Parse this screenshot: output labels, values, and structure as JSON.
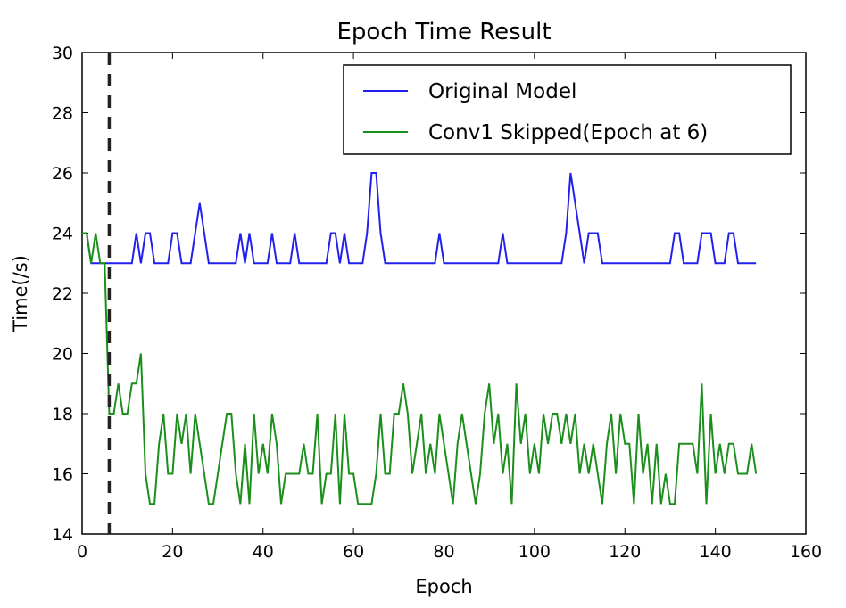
{
  "chart_data": {
    "type": "line",
    "title": "Epoch Time Result",
    "xlabel": "Epoch",
    "ylabel": "Time(/s)",
    "xlim": [
      0,
      160
    ],
    "ylim": [
      14,
      30
    ],
    "xticks": [
      0,
      20,
      40,
      60,
      80,
      100,
      120,
      140,
      160
    ],
    "yticks": [
      14,
      16,
      18,
      20,
      22,
      24,
      26,
      28,
      30
    ],
    "grid": false,
    "legend_position": "top-right",
    "vline": {
      "x": 6,
      "style": "dashed",
      "color": "#222222"
    },
    "series": [
      {
        "name": "Original Model",
        "color": "#2020ee",
        "x": [
          0,
          1,
          2,
          3,
          4,
          5,
          6,
          7,
          8,
          9,
          10,
          11,
          12,
          13,
          14,
          15,
          16,
          17,
          18,
          19,
          20,
          21,
          22,
          23,
          24,
          25,
          26,
          27,
          28,
          29,
          30,
          31,
          32,
          33,
          34,
          35,
          36,
          37,
          38,
          39,
          40,
          41,
          42,
          43,
          44,
          45,
          46,
          47,
          48,
          49,
          50,
          51,
          52,
          53,
          54,
          55,
          56,
          57,
          58,
          59,
          60,
          61,
          62,
          63,
          64,
          65,
          66,
          67,
          68,
          69,
          70,
          71,
          72,
          73,
          74,
          75,
          76,
          77,
          78,
          79,
          80,
          81,
          82,
          83,
          84,
          85,
          86,
          87,
          88,
          89,
          90,
          91,
          92,
          93,
          94,
          95,
          96,
          97,
          98,
          99,
          100,
          101,
          102,
          103,
          104,
          105,
          106,
          107,
          108,
          109,
          110,
          111,
          112,
          113,
          114,
          115,
          116,
          117,
          118,
          119,
          120,
          121,
          122,
          123,
          124,
          125,
          126,
          127,
          128,
          129,
          130,
          131,
          132,
          133,
          134,
          135,
          136,
          137,
          138,
          139,
          140,
          141,
          142,
          143,
          144,
          145,
          146,
          147,
          148,
          149
        ],
        "y": [
          24,
          24,
          23,
          23,
          23,
          23,
          23,
          23,
          23,
          23,
          23,
          23,
          24,
          23,
          24,
          24,
          23,
          23,
          23,
          23,
          24,
          24,
          23,
          23,
          23,
          24,
          25,
          24,
          23,
          23,
          23,
          23,
          23,
          23,
          23,
          24,
          23,
          24,
          23,
          23,
          23,
          23,
          24,
          23,
          23,
          23,
          23,
          24,
          23,
          23,
          23,
          23,
          23,
          23,
          23,
          24,
          24,
          23,
          24,
          23,
          23,
          23,
          23,
          24,
          26,
          26,
          24,
          23,
          23,
          23,
          23,
          23,
          23,
          23,
          23,
          23,
          23,
          23,
          23,
          24,
          23,
          23,
          23,
          23,
          23,
          23,
          23,
          23,
          23,
          23,
          23,
          23,
          23,
          24,
          23,
          23,
          23,
          23,
          23,
          23,
          23,
          23,
          23,
          23,
          23,
          23,
          23,
          24,
          26,
          25,
          24,
          23,
          24,
          24,
          24,
          23,
          23,
          23,
          23,
          23,
          23,
          23,
          23,
          23,
          23,
          23,
          23,
          23,
          23,
          23,
          23,
          24,
          24,
          23,
          23,
          23,
          23,
          24,
          24,
          24,
          23,
          23,
          23,
          24,
          24,
          23,
          23,
          23,
          23,
          23
        ]
      },
      {
        "name": "Conv1 Skipped(Epoch at 6)",
        "color": "#1b8f1b",
        "x": [
          0,
          1,
          2,
          3,
          4,
          5,
          6,
          7,
          8,
          9,
          10,
          11,
          12,
          13,
          14,
          15,
          16,
          17,
          18,
          19,
          20,
          21,
          22,
          23,
          24,
          25,
          26,
          27,
          28,
          29,
          30,
          31,
          32,
          33,
          34,
          35,
          36,
          37,
          38,
          39,
          40,
          41,
          42,
          43,
          44,
          45,
          46,
          47,
          48,
          49,
          50,
          51,
          52,
          53,
          54,
          55,
          56,
          57,
          58,
          59,
          60,
          61,
          62,
          63,
          64,
          65,
          66,
          67,
          68,
          69,
          70,
          71,
          72,
          73,
          74,
          75,
          76,
          77,
          78,
          79,
          80,
          81,
          82,
          83,
          84,
          85,
          86,
          87,
          88,
          89,
          90,
          91,
          92,
          93,
          94,
          95,
          96,
          97,
          98,
          99,
          100,
          101,
          102,
          103,
          104,
          105,
          106,
          107,
          108,
          109,
          110,
          111,
          112,
          113,
          114,
          115,
          116,
          117,
          118,
          119,
          120,
          121,
          122,
          123,
          124,
          125,
          126,
          127,
          128,
          129,
          130,
          131,
          132,
          133,
          134,
          135,
          136,
          137,
          138,
          139,
          140,
          141,
          142,
          143,
          144,
          145,
          146,
          147,
          148,
          149
        ],
        "y": [
          24,
          24,
          23,
          24,
          23,
          23,
          18,
          18,
          19,
          18,
          18,
          19,
          19,
          20,
          16,
          15,
          15,
          17,
          18,
          16,
          16,
          18,
          17,
          18,
          16,
          18,
          17,
          16,
          15,
          15,
          16,
          17,
          18,
          18,
          16,
          15,
          17,
          15,
          18,
          16,
          17,
          16,
          18,
          17,
          15,
          16,
          16,
          16,
          16,
          17,
          16,
          16,
          18,
          15,
          16,
          16,
          18,
          15,
          18,
          16,
          16,
          15,
          15,
          15,
          15,
          16,
          18,
          16,
          16,
          18,
          18,
          19,
          18,
          16,
          17,
          18,
          16,
          17,
          16,
          18,
          17,
          16,
          15,
          17,
          18,
          17,
          16,
          15,
          16,
          18,
          19,
          17,
          18,
          16,
          17,
          15,
          19,
          17,
          18,
          16,
          17,
          16,
          18,
          17,
          18,
          18,
          17,
          18,
          17,
          18,
          16,
          17,
          16,
          17,
          16,
          15,
          17,
          18,
          16,
          18,
          17,
          17,
          15,
          18,
          16,
          17,
          15,
          17,
          15,
          16,
          15,
          15,
          17,
          17,
          17,
          17,
          16,
          19,
          15,
          18,
          16,
          17,
          16,
          17,
          17,
          16,
          16,
          16,
          17,
          16
        ]
      }
    ]
  }
}
